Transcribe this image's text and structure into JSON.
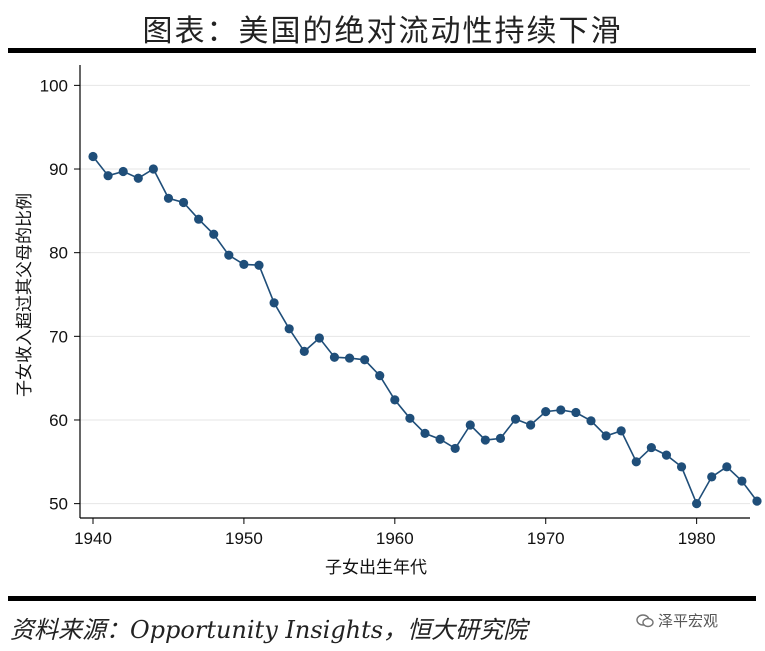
{
  "header": {
    "title": "图表：美国的绝对流动性持续下滑"
  },
  "footer": {
    "source": "资料来源：Opportunity Insights，恒大研究院",
    "watermark": "泽平宏观",
    "watermark_icon": "wechat-icon"
  },
  "chart_data": {
    "type": "line",
    "title": "",
    "xlabel": "子女出生年代",
    "ylabel": "子女收入超过其父母的比例",
    "xlim": [
      1940,
      1984
    ],
    "ylim": [
      49,
      101
    ],
    "xticks": [
      1940,
      1950,
      1960,
      1970,
      1980
    ],
    "yticks": [
      50,
      60,
      70,
      80,
      90,
      100
    ],
    "grid": true,
    "color": "#1f4e79",
    "series": [
      {
        "x": [
          1940,
          1941,
          1942,
          1943,
          1944,
          1945,
          1946,
          1947,
          1948,
          1949,
          1950,
          1951,
          1952,
          1953,
          1954,
          1955,
          1956,
          1957,
          1958,
          1959,
          1960,
          1961,
          1962,
          1963,
          1964,
          1965,
          1966,
          1967,
          1968,
          1969,
          1970,
          1971,
          1972,
          1973,
          1974,
          1975,
          1976,
          1977,
          1978,
          1979,
          1980,
          1981,
          1982,
          1983,
          1984
        ],
        "values": [
          91.5,
          89.2,
          89.7,
          88.9,
          90.0,
          86.5,
          86.0,
          84.0,
          82.2,
          79.7,
          78.6,
          78.5,
          74.0,
          70.9,
          68.2,
          69.8,
          67.5,
          67.4,
          67.2,
          65.3,
          62.4,
          60.2,
          58.4,
          57.7,
          56.6,
          59.4,
          57.6,
          57.8,
          60.1,
          59.4,
          61.0,
          61.2,
          60.9,
          59.9,
          58.1,
          58.7,
          55.0,
          56.7,
          55.8,
          54.4,
          50.0,
          53.2,
          54.4,
          52.7,
          50.3
        ]
      }
    ]
  }
}
